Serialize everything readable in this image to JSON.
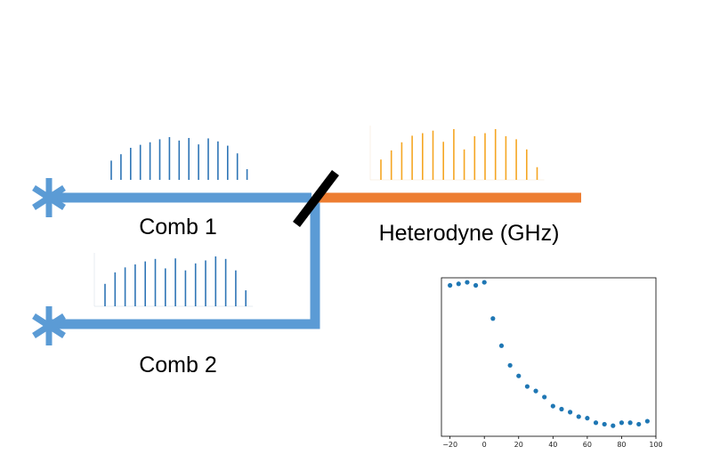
{
  "labels": {
    "comb1": "Comb 1",
    "comb2": "Comb 2",
    "heterodyne": "Heterodyne (GHz)"
  },
  "colors": {
    "comb_beam": "#5b9bd5",
    "comb_lines": "#2e75b6",
    "heterodyne_beam": "#ed7d31",
    "heterodyne_lines": "#f5a623",
    "splitter": "#000000",
    "plot_points": "#1f77b4"
  },
  "icons": {
    "source1": "asterisk-laser-source-icon",
    "source2": "asterisk-laser-source-icon",
    "splitter": "beam-splitter-icon"
  },
  "comb_spectra": {
    "comb1_relative_heights": [
      0.45,
      0.6,
      0.75,
      0.82,
      0.88,
      0.95,
      1.0,
      0.92,
      0.98,
      0.83,
      0.97,
      0.9,
      0.8,
      0.62,
      0.25
    ],
    "comb2_relative_heights": [
      0.45,
      0.68,
      0.78,
      0.84,
      0.9,
      0.95,
      0.76,
      0.96,
      0.72,
      0.86,
      0.92,
      1.0,
      0.95,
      0.72,
      0.32
    ],
    "heterodyne_relative_heights": [
      0.4,
      0.58,
      0.74,
      0.87,
      0.92,
      0.97,
      0.75,
      1.0,
      0.6,
      0.86,
      0.92,
      1.0,
      0.86,
      0.8,
      0.6,
      0.25
    ]
  },
  "chart_data": {
    "type": "scatter",
    "title": "",
    "xlabel": "",
    "ylabel": "",
    "xlim": [
      -25,
      100
    ],
    "ylim": [
      0,
      1.05
    ],
    "x_ticks": [
      -20,
      0,
      20,
      40,
      60,
      80,
      100
    ],
    "x_tick_labels": [
      "−20",
      "0",
      "20",
      "40",
      "60",
      "80",
      "100"
    ],
    "y_ticks_visible": false,
    "grid": false,
    "series": [
      {
        "x": [
          -20,
          -15,
          -10,
          -5,
          0,
          5,
          10,
          15,
          20,
          25,
          30,
          35,
          40,
          45,
          50,
          55,
          60,
          65,
          70,
          75,
          80,
          85,
          90,
          95
        ],
        "y": [
          1.0,
          1.01,
          1.02,
          1.0,
          1.02,
          0.78,
          0.6,
          0.47,
          0.4,
          0.33,
          0.3,
          0.26,
          0.2,
          0.18,
          0.16,
          0.13,
          0.12,
          0.09,
          0.08,
          0.07,
          0.09,
          0.09,
          0.08,
          0.1
        ]
      }
    ]
  }
}
